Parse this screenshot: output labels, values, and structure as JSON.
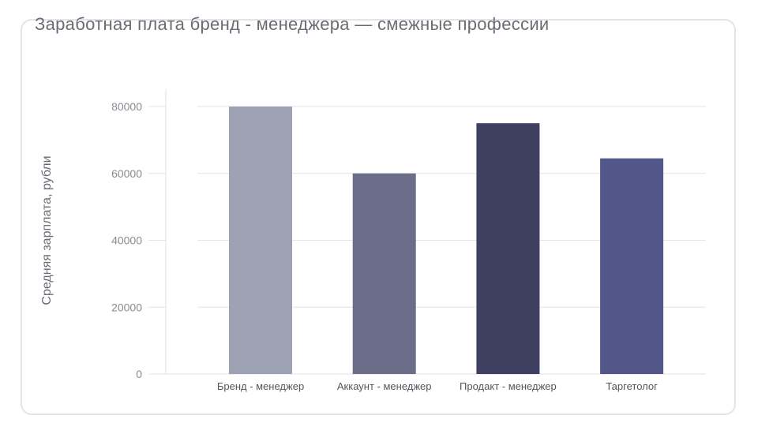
{
  "chart_data": {
    "type": "bar",
    "title": "Заработная плата бренд - менеджера — смежные профессии",
    "xlabel": "",
    "ylabel": "Средняя зарплата, рубли",
    "categories": [
      "Бренд - менеджер",
      "Аккаунт - менеджер",
      "Продакт - менеджер",
      "Таргетолог"
    ],
    "values": [
      80000,
      60000,
      75000,
      64500
    ],
    "colors": [
      "#9da1b4",
      "#6c6e89",
      "#3f3f62",
      "#525689"
    ],
    "yticks": [
      0,
      20000,
      40000,
      60000,
      80000
    ],
    "ylim": [
      0,
      80000
    ],
    "grid": true,
    "legend": "none"
  }
}
